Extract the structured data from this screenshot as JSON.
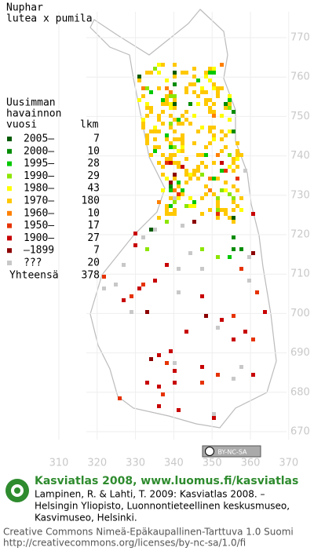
{
  "title": [
    "Nuphar",
    "lutea x pumila"
  ],
  "legend": {
    "heading": [
      "Uusimman",
      "havainnon"
    ],
    "col_headers": [
      "vuosi",
      "lkm"
    ],
    "rows": [
      {
        "label": "2005–",
        "count": 7,
        "color": "#005a00"
      },
      {
        "label": "2000–",
        "count": 10,
        "color": "#008c00"
      },
      {
        "label": "1995–",
        "count": 28,
        "color": "#00c800"
      },
      {
        "label": "1990–",
        "count": 29,
        "color": "#8ce600"
      },
      {
        "label": "1980–",
        "count": 43,
        "color": "#ffff00"
      },
      {
        "label": "1970–",
        "count": 180,
        "color": "#ffc800"
      },
      {
        "label": "1960–",
        "count": 10,
        "color": "#ff8000"
      },
      {
        "label": "1950–",
        "count": 17,
        "color": "#e63200"
      },
      {
        "label": "1900–",
        "count": 27,
        "color": "#c80000"
      },
      {
        "label": "–1899",
        "count": 7,
        "color": "#8c0000"
      },
      {
        "label": "???",
        "count": 20,
        "color": "#c8c8c8"
      }
    ],
    "total_label": "Yhteensä",
    "total": 378
  },
  "map": {
    "y_labels": [
      770,
      760,
      750,
      740,
      730,
      720,
      710,
      700,
      690,
      680,
      670
    ],
    "x_labels": [
      310,
      320,
      330,
      340,
      350,
      360,
      370
    ]
  },
  "license_badge": "BY-NC-SA",
  "footer": {
    "headline": "Kasviatlas 2008, www.luomus.fi/kasviatlas",
    "citation": [
      "Lampinen, R. & Lahti, T. 2009: Kasviatlas 2008. –",
      "Helsingin Yliopisto, Luonnontieteellinen keskusmuseo,",
      "Kasvimuseo, Helsinki."
    ],
    "license": [
      "Creative Commons Nimeä-Epäkaupallinen-Tarttuva 1.0 Suomi",
      "http://creativecommons.org/licenses/by-nc-sa/1.0/fi"
    ]
  }
}
